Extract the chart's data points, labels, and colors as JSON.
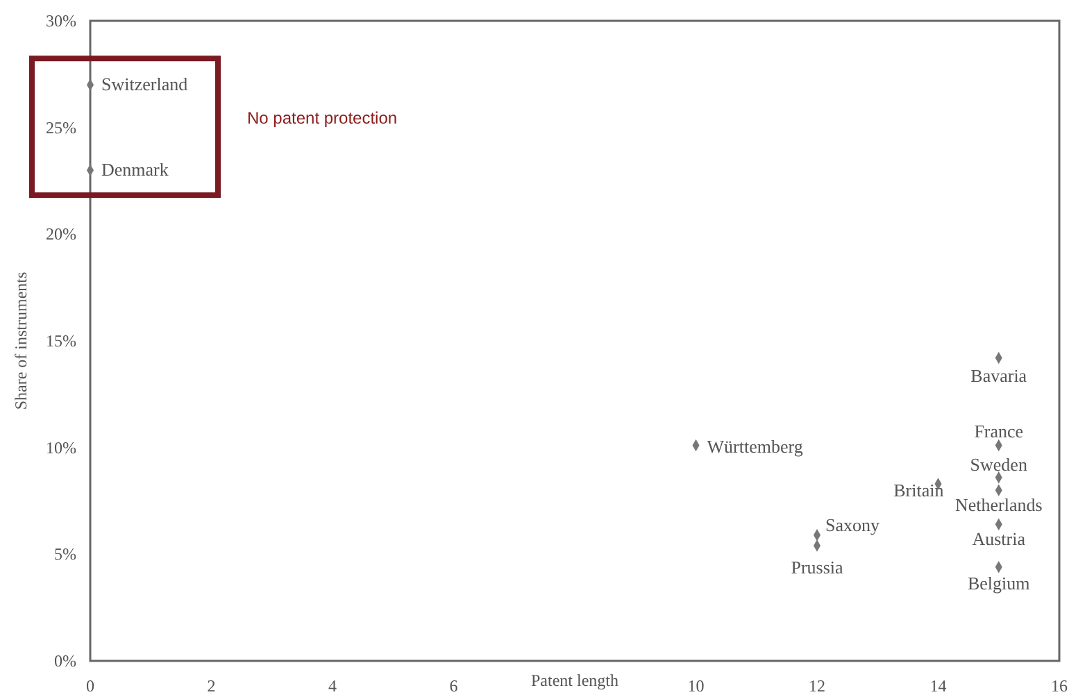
{
  "chart_data": {
    "type": "scatter",
    "xlabel": "Patent length",
    "ylabel": "Share of instruments",
    "xlim": [
      0,
      16
    ],
    "xticks": [
      0,
      2,
      4,
      6,
      10,
      12,
      14,
      16
    ],
    "ylim": [
      0,
      30
    ],
    "yticks": [
      {
        "value": 0,
        "label": "0%"
      },
      {
        "value": 5,
        "label": "5%"
      },
      {
        "value": 10,
        "label": "10%"
      },
      {
        "value": 15,
        "label": "15%"
      },
      {
        "value": 20,
        "label": "20%"
      },
      {
        "value": 25,
        "label": "25%"
      },
      {
        "value": 30,
        "label": "30%"
      }
    ],
    "grid": false,
    "marker": "diamond",
    "series": [
      {
        "color": "#777777",
        "x": [
          0,
          0,
          15,
          10,
          15,
          15,
          15,
          14,
          15,
          15,
          12,
          12
        ],
        "values": [
          27,
          23,
          14.2,
          10.1,
          10.1,
          8.6,
          8,
          8.3,
          6.4,
          4.4,
          5.9,
          5.4
        ]
      }
    ],
    "annotations": [
      {
        "text": "Switzerland",
        "x": 0,
        "y": 27
      },
      {
        "text": "Denmark",
        "x": 0,
        "y": 23
      },
      {
        "text": "Bavaria",
        "x": 15,
        "y": 14.2
      },
      {
        "text": "Württemberg",
        "x": 10,
        "y": 10.1
      },
      {
        "text": "France",
        "x": 15,
        "y": 10.1
      },
      {
        "text": "Sweden",
        "x": 15,
        "y": 8.6
      },
      {
        "text": "Netherlands",
        "x": 15,
        "y": 8
      },
      {
        "text": "Britain",
        "x": 14,
        "y": 8.3
      },
      {
        "text": "Austria",
        "x": 15,
        "y": 6.4
      },
      {
        "text": "Belgium",
        "x": 15,
        "y": 4.4
      },
      {
        "text": "Saxony",
        "x": 12,
        "y": 5.9
      },
      {
        "text": "Prussia",
        "x": 12,
        "y": 5.4
      },
      "No patent protection"
    ]
  }
}
